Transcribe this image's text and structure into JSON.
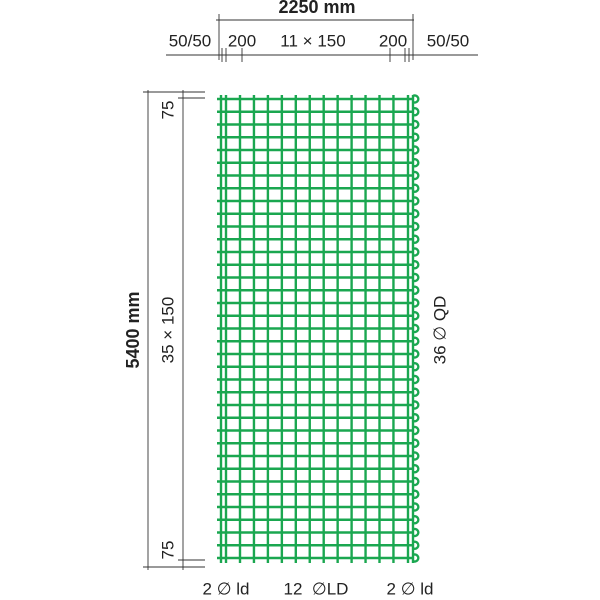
{
  "dimensions": {
    "total_width": "2250 mm",
    "width_segments": [
      "50/50",
      "200",
      "11 × 150",
      "200",
      "50/50"
    ],
    "total_height": "5400 mm",
    "height_segments": [
      "75",
      "35 × 150",
      "75"
    ]
  },
  "labels": {
    "cross_bars": "36 ∅ QD",
    "bottom": [
      "2 ∅ ld",
      "12  ∅LD",
      "2 ∅ ld"
    ]
  }
}
